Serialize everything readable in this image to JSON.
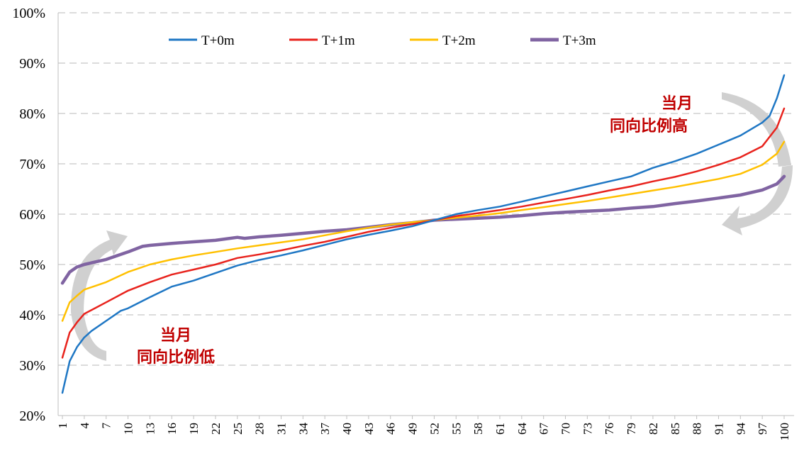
{
  "chart_data": {
    "type": "line",
    "title": "",
    "xlabel": "",
    "ylabel": "",
    "ylim": [
      20,
      100
    ],
    "y_ticks": [
      "20%",
      "30%",
      "40%",
      "50%",
      "60%",
      "70%",
      "80%",
      "90%",
      "100%"
    ],
    "x_range": [
      1,
      100
    ],
    "x_tick_values": [
      1,
      4,
      7,
      10,
      13,
      16,
      19,
      22,
      25,
      28,
      31,
      34,
      37,
      40,
      43,
      46,
      49,
      52,
      55,
      58,
      61,
      64,
      67,
      70,
      73,
      76,
      79,
      82,
      85,
      88,
      91,
      94,
      97,
      100
    ],
    "x_ticks": [
      "1",
      "4",
      "7",
      "10",
      "13",
      "16",
      "19",
      "22",
      "25",
      "28",
      "31",
      "34",
      "37",
      "40",
      "43",
      "46",
      "49",
      "52",
      "55",
      "58",
      "61",
      "64",
      "67",
      "70",
      "73",
      "76",
      "79",
      "82",
      "85",
      "88",
      "91",
      "94",
      "97",
      "100"
    ],
    "grid": "horizontal dashed",
    "legend_position": "top",
    "series": [
      {
        "name": "T+0m",
        "color": "#1f77c4",
        "x": [
          1,
          2,
          3,
          4,
          5,
          7,
          9,
          10,
          13,
          16,
          19,
          22,
          25,
          28,
          31,
          34,
          37,
          40,
          43,
          46,
          49,
          52,
          55,
          58,
          61,
          64,
          67,
          70,
          73,
          76,
          79,
          82,
          85,
          88,
          91,
          94,
          97,
          98,
          99,
          100
        ],
        "values": [
          24.5,
          30.8,
          33.6,
          35.5,
          36.8,
          38.8,
          40.8,
          41.3,
          43.5,
          45.6,
          46.8,
          48.3,
          49.8,
          50.9,
          51.8,
          52.8,
          53.9,
          55.0,
          55.9,
          56.7,
          57.6,
          58.8,
          60.0,
          60.8,
          61.5,
          62.5,
          63.5,
          64.5,
          65.5,
          66.5,
          67.5,
          69.2,
          70.5,
          72.0,
          73.8,
          75.6,
          78.2,
          79.5,
          83.0,
          87.6
        ]
      },
      {
        "name": "T+1m",
        "color": "#e8231d",
        "x": [
          1,
          2,
          3,
          4,
          7,
          10,
          13,
          16,
          19,
          22,
          25,
          28,
          31,
          34,
          37,
          40,
          43,
          46,
          49,
          52,
          55,
          58,
          61,
          64,
          67,
          70,
          73,
          76,
          79,
          82,
          85,
          88,
          91,
          94,
          97,
          99,
          100
        ],
        "values": [
          31.5,
          36.5,
          38.5,
          40.2,
          42.5,
          44.8,
          46.5,
          48.0,
          49.0,
          50.0,
          51.3,
          52.0,
          52.8,
          53.7,
          54.5,
          55.5,
          56.5,
          57.3,
          58.0,
          58.8,
          59.6,
          60.2,
          60.8,
          61.5,
          62.3,
          63.0,
          63.8,
          64.7,
          65.5,
          66.5,
          67.4,
          68.5,
          69.8,
          71.3,
          73.5,
          77.2,
          81.0
        ]
      },
      {
        "name": "T+2m",
        "color": "#ffc000",
        "x": [
          1,
          2,
          3,
          4,
          7,
          10,
          13,
          16,
          19,
          22,
          25,
          28,
          31,
          34,
          37,
          40,
          43,
          46,
          49,
          52,
          55,
          58,
          61,
          64,
          67,
          70,
          73,
          76,
          79,
          82,
          85,
          88,
          91,
          94,
          97,
          99,
          100
        ],
        "values": [
          38.8,
          42.5,
          43.8,
          45.0,
          46.5,
          48.5,
          50.0,
          51.0,
          51.8,
          52.5,
          53.2,
          53.8,
          54.4,
          55.0,
          55.8,
          56.6,
          57.3,
          57.9,
          58.4,
          58.8,
          59.3,
          59.7,
          60.2,
          60.8,
          61.4,
          62.0,
          62.6,
          63.3,
          64.0,
          64.7,
          65.4,
          66.2,
          67.0,
          68.0,
          69.8,
          72.0,
          74.4
        ]
      },
      {
        "name": "T+3m",
        "color": "#8064a2",
        "x": [
          1,
          2,
          3,
          4,
          7,
          10,
          12,
          13,
          16,
          19,
          22,
          25,
          26,
          28,
          31,
          34,
          37,
          40,
          43,
          46,
          49,
          52,
          55,
          58,
          61,
          64,
          67,
          70,
          73,
          76,
          79,
          82,
          85,
          88,
          91,
          94,
          97,
          99,
          100
        ],
        "values": [
          46.3,
          48.5,
          49.5,
          50.0,
          51.0,
          52.5,
          53.6,
          53.8,
          54.2,
          54.5,
          54.8,
          55.4,
          55.2,
          55.5,
          55.8,
          56.2,
          56.6,
          56.9,
          57.4,
          57.9,
          58.3,
          58.8,
          59.0,
          59.2,
          59.4,
          59.7,
          60.1,
          60.4,
          60.6,
          60.8,
          61.2,
          61.5,
          62.1,
          62.6,
          63.2,
          63.8,
          64.8,
          66.0,
          67.5
        ]
      }
    ],
    "annotations": [
      {
        "line1": "当月",
        "line2": "同向比例高",
        "position": "upper-right"
      },
      {
        "line1": "当月",
        "line2": "同向比例低",
        "position": "lower-left"
      }
    ]
  }
}
